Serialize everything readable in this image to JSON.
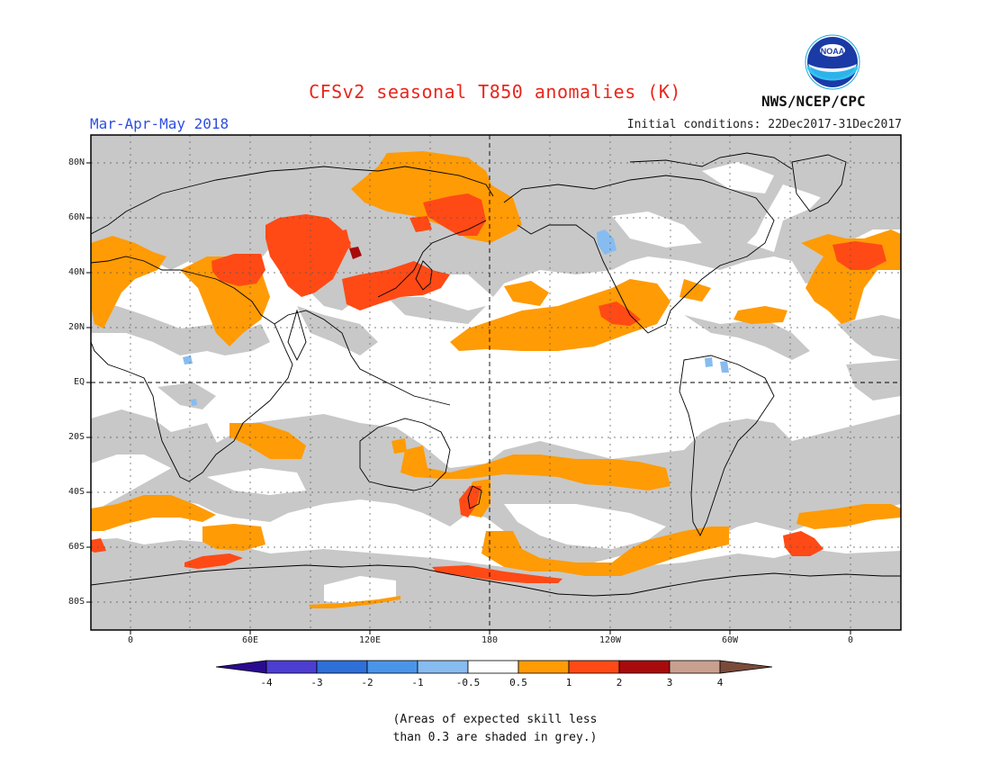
{
  "header": {
    "title": "CFSv2 seasonal T850 anomalies (K)",
    "period": "Mar-Apr-May 2018",
    "initial_conditions": "Initial conditions: 22Dec2017-31Dec2017",
    "agency": "NWS/NCEP/CPC",
    "logo_text": "NOAA"
  },
  "map": {
    "latitude_labels": [
      "80N",
      "60N",
      "40N",
      "20N",
      "EQ",
      "20S",
      "40S",
      "60S",
      "80S"
    ],
    "longitude_labels": [
      "0",
      "60E",
      "120E",
      "180",
      "120W",
      "60W",
      "0"
    ]
  },
  "colorbar": {
    "labels": [
      "-4",
      "-3",
      "-2",
      "-1",
      "-0.5",
      "0.5",
      "1",
      "2",
      "3",
      "4"
    ],
    "colors": [
      "#2a0b8f",
      "#4b3ed0",
      "#2f6fd8",
      "#4a95ea",
      "#87bcf0",
      "#ffffff",
      "#ff9b05",
      "#ff4a16",
      "#a80b0b",
      "#c9a090",
      "#7a4a3a"
    ]
  },
  "colors": {
    "skill_grey": "#c8c8c8",
    "no_signal": "#ffffff",
    "warm_05_1": "#ff9b05",
    "warm_1_2": "#ff4a16",
    "warm_2_3": "#a80b0b",
    "cool_-1_-05": "#87bcf0"
  },
  "footnote": {
    "line1": "(Areas of expected skill less",
    "line2": "than 0.3 are shaded in grey.)"
  }
}
